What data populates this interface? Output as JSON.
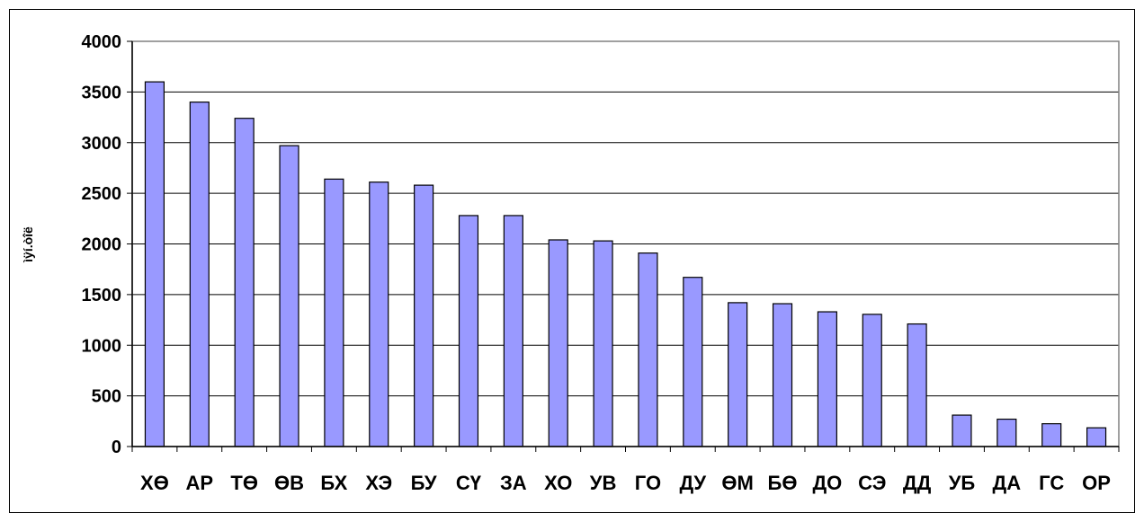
{
  "chart_data": {
    "type": "bar",
    "title": "",
    "xlabel": "",
    "ylabel": "ìÿí.òîë",
    "ylim": [
      0,
      4000
    ],
    "yticks": [
      0,
      500,
      1000,
      1500,
      2000,
      2500,
      3000,
      3500,
      4000
    ],
    "grid": true,
    "legend": "none",
    "categories": [
      "ХӨ",
      "АР",
      "ТӨ",
      "ӨВ",
      "БХ",
      "ХЭ",
      "БУ",
      "СҮ",
      "ЗА",
      "ХО",
      "УВ",
      "ГО",
      "ДУ",
      "ӨМ",
      "БӨ",
      "ДО",
      "СЭ",
      "ДД",
      "УБ",
      "ДА",
      "ГС",
      "ОР"
    ],
    "values": [
      3600,
      3400,
      3240,
      2970,
      2640,
      2610,
      2580,
      2280,
      2280,
      2040,
      2030,
      1910,
      1670,
      1420,
      1410,
      1330,
      1305,
      1210,
      310,
      270,
      225,
      185
    ],
    "colors": {
      "bar": "#9999ff",
      "bar_stroke": "#000000",
      "grid": "#000000",
      "plot_border": "#808080"
    }
  }
}
